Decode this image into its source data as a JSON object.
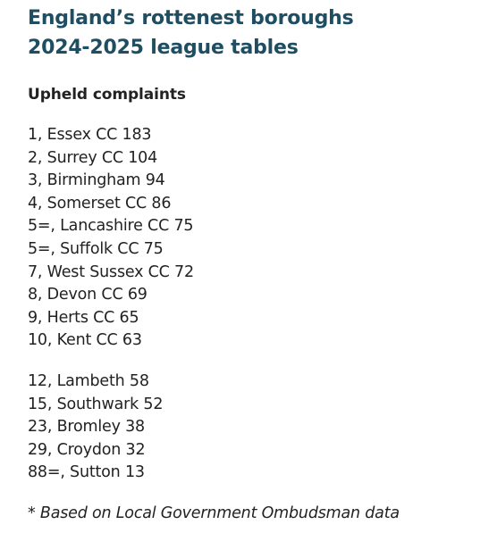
{
  "title": {
    "line1": "England’s rottenest boroughs",
    "line2": "2024-2025 league tables"
  },
  "subheading": "Upheld complaints",
  "top_ten": [
    "1, Essex CC 183",
    "2, Surrey CC 104",
    "3, Birmingham 94",
    "4, Somerset CC 86",
    "5=, Lancashire CC 75",
    "5=, Suffolk CC 75",
    "7, West Sussex CC 72",
    "8, Devon CC 69",
    "9, Herts CC 65",
    "10, Kent CC 63"
  ],
  "london": [
    "12, Lambeth 58",
    "15, Southwark 52",
    "23, Bromley 38",
    "29, Croydon 32",
    "88=, Sutton 13"
  ],
  "footnote": "* Based on Local Government Ombudsman data",
  "colors": {
    "title": "#1f4e63",
    "text": "#222222",
    "background": "#ffffff"
  }
}
